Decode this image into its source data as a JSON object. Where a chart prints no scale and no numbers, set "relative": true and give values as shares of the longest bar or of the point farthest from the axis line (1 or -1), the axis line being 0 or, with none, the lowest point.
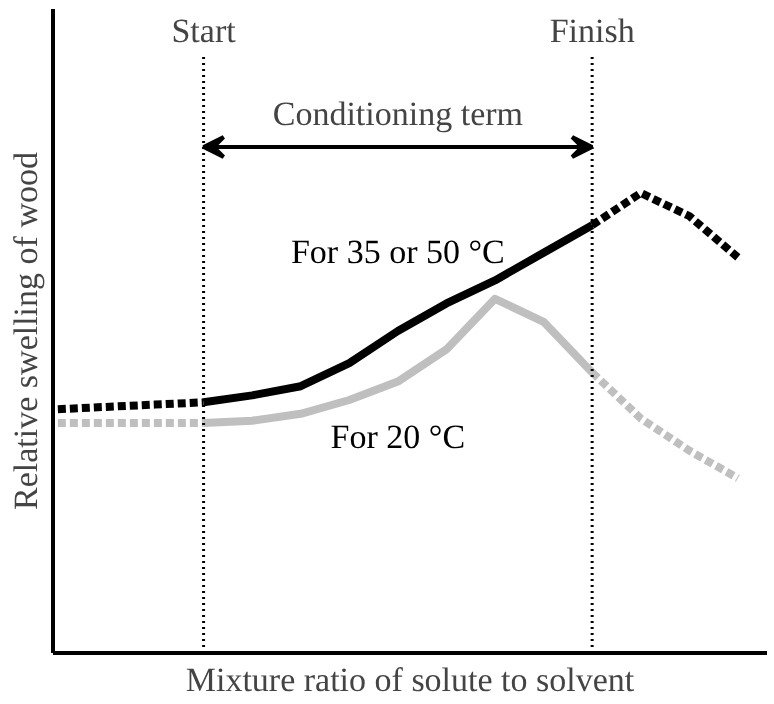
{
  "chart_data": {
    "type": "line",
    "relative": true,
    "xlabel": "Mixture ratio of solute to solvent",
    "ylabel": "Relative swelling of wood",
    "categories": [
      null,
      null,
      null,
      null,
      null,
      null,
      null,
      null,
      null,
      null,
      null,
      null,
      null,
      null,
      null
    ],
    "series": [
      {
        "color": "#000000",
        "line_style": "dashed",
        "values": [
          0.53,
          0.535,
          0.54,
          0.545,
          null,
          null,
          null,
          null,
          null,
          null,
          null,
          null,
          null,
          null,
          null
        ]
      },
      {
        "name": "For 35 or 50 °C",
        "color": "#000000",
        "line_style": "solid",
        "values": [
          null,
          null,
          null,
          0.545,
          0.56,
          0.58,
          0.63,
          0.7,
          0.76,
          0.81,
          0.87,
          0.93,
          null,
          null,
          null
        ]
      },
      {
        "color": "#000000",
        "line_style": "dashed",
        "values": [
          null,
          null,
          null,
          null,
          null,
          null,
          null,
          null,
          null,
          null,
          null,
          0.93,
          1,
          0.95,
          0.86
        ]
      },
      {
        "color": "#bfbfbf",
        "line_style": "dashed",
        "values": [
          0.5,
          0.5,
          0.5,
          0.5,
          null,
          null,
          null,
          null,
          null,
          null,
          null,
          null,
          null,
          null,
          null
        ]
      },
      {
        "name": "For 20 °C",
        "color": "#bfbfbf",
        "line_style": "solid",
        "values": [
          null,
          null,
          null,
          0.5,
          0.505,
          0.52,
          0.55,
          0.59,
          0.66,
          0.77,
          0.72,
          0.61,
          null,
          null,
          null
        ]
      },
      {
        "color": "#bfbfbf",
        "line_style": "dashed",
        "values": [
          null,
          null,
          null,
          null,
          null,
          null,
          null,
          null,
          null,
          null,
          null,
          0.61,
          0.51,
          0.44,
          0.38
        ]
      }
    ],
    "annotations": [
      "Start",
      "Finish",
      "Conditioning term"
    ]
  }
}
